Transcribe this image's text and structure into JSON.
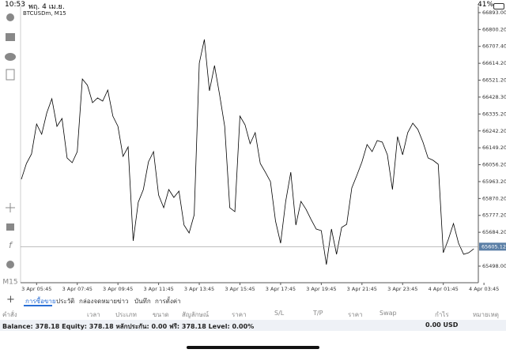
{
  "status_bar": {
    "time": "10:53",
    "date": "พฤ. 4 เม.ย.",
    "battery": "41%"
  },
  "side_toolbar": {
    "timeframe": "M15"
  },
  "chart_data": {
    "type": "line",
    "title": "BTCUSDm, M15",
    "categories": [
      null,
      null,
      null,
      "3 Apr 05:45",
      null,
      null,
      null,
      null,
      null,
      null,
      null,
      "3 Apr 07:45",
      null,
      null,
      null,
      null,
      null,
      null,
      null,
      "3 Apr 09:45",
      null,
      null,
      null,
      null,
      null,
      null,
      null,
      "3 Apr 11:45",
      null,
      null,
      null,
      null,
      null,
      null,
      null,
      "3 Apr 13:45",
      null,
      null,
      null,
      null,
      null,
      null,
      null,
      "3 Apr 15:45",
      null,
      null,
      null,
      null,
      null,
      null,
      null,
      "3 Apr 17:45",
      null,
      null,
      null,
      null,
      null,
      null,
      null,
      "3 Apr 19:45",
      null,
      null,
      null,
      null,
      null,
      null,
      null,
      "3 Apr 21:45",
      null,
      null,
      null,
      null,
      null,
      null,
      null,
      "3 Apr 23:45",
      null,
      null,
      null,
      null,
      null,
      null,
      null,
      "4 Apr 01:45",
      null,
      null,
      null,
      null,
      null,
      null,
      null,
      "4 Apr 03:45"
    ],
    "values": [
      65976.0,
      66062.9,
      66115.1,
      66280.2,
      66223.7,
      66341.1,
      66419.3,
      66267.2,
      66310.6,
      66093.3,
      66067.3,
      66128.1,
      66527.9,
      66493.2,
      66397.6,
      66423.6,
      66406.2,
      66467.1,
      66323.7,
      66267.2,
      66102.0,
      66154.2,
      65637.0,
      65850.0,
      65919.5,
      66071.6,
      66128.1,
      65889.1,
      65819.5,
      65919.5,
      65876.0,
      65910.8,
      65723.9,
      65680.5,
      65780.4,
      66614.9,
      66745.2,
      66462.7,
      66601.8,
      66441.0,
      66267.2,
      65819.5,
      65797.8,
      66323.7,
      66275.9,
      66171.6,
      66232.4,
      66062.9,
      66015.1,
      65963.0,
      65745.7,
      65624.0,
      65854.3,
      66015.1,
      65723.9,
      65854.3,
      65810.8,
      65754.3,
      65702.2,
      65693.5,
      65506.6,
      65702.2,
      65563.1,
      65710.9,
      65728.3,
      65928.2,
      65997.7,
      66071.6,
      66167.2,
      66128.1,
      66188.9,
      66180.3,
      66110.7,
      65919.5,
      66210.7,
      66110.7,
      66232.4,
      66284.6,
      66249.8,
      66180.3,
      66093.3,
      66080.3,
      66058.6,
      65571.8,
      65645.7,
      65732.6,
      65624.0,
      65563.1,
      65571.8,
      65593.5,
      null,
      null
    ],
    "color": "#000000",
    "ylim": [
      65406.7,
      66927.8
    ],
    "yticks": [
      {
        "value": 66893,
        "label": "66893.00"
      },
      {
        "value": 66800.2,
        "label": "66800.20"
      },
      {
        "value": 66707.4,
        "label": "66707.40"
      },
      {
        "value": 66614.2,
        "label": "66614.20"
      },
      {
        "value": 66521.2,
        "label": "66521.20"
      },
      {
        "value": 66428.3,
        "label": "66428.30"
      },
      {
        "value": 66335.2,
        "label": "66335.20"
      },
      {
        "value": 66242.2,
        "label": "66242.20"
      },
      {
        "value": 66149.2,
        "label": "66149.20"
      },
      {
        "value": 66056.2,
        "label": "66056.20"
      },
      {
        "value": 65963.2,
        "label": "65963.20"
      },
      {
        "value": 65870.2,
        "label": "65870.20"
      },
      {
        "value": 65777.2,
        "label": "65777.20"
      },
      {
        "value": 65684.2,
        "label": "65684.20"
      },
      {
        "value": 65498,
        "label": "65498.00"
      }
    ],
    "current_price": {
      "value": 65605.12,
      "label": "65605.12"
    }
  },
  "tabs": [
    "การซื้อขาย",
    "ประวัติ",
    "กล่องจดหมาย",
    "ข่าว",
    "บันทึก",
    "การตั้งค่า"
  ],
  "table": {
    "headers": [
      "คำสั่ง",
      "เวลา",
      "ประเภท",
      "ขนาด",
      "สัญลักษณ์",
      "ราคา",
      "S/L",
      "T/P",
      "ราคา",
      "Swap",
      "กำไร",
      "หมายเหตุ"
    ]
  },
  "summary": {
    "text": "Balance: 378.18 Equity: 378.18 หลักประกัน: 0.00 ฟรี: 378.18 Level: 0.00%",
    "profit": "0.00 USD"
  }
}
